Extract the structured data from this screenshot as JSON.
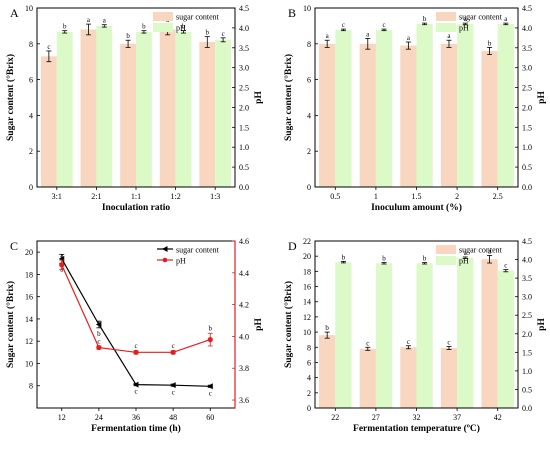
{
  "chart_data": [
    {
      "panel": "A",
      "type": "bar",
      "categories": [
        "3:1",
        "2:1",
        "1:1",
        "1:2",
        "1:3"
      ],
      "xlabel": "Inoculation ratio",
      "ylabel": "Sugar content (°Brix)",
      "y2label": "pH",
      "ylim": [
        0,
        10
      ],
      "yticks": [
        0,
        2,
        4,
        6,
        8,
        10
      ],
      "y2lim": [
        0,
        4.5
      ],
      "y2ticks": [
        "0.0",
        "0.5",
        "1.0",
        "1.5",
        "2.0",
        "2.5",
        "3.0",
        "3.5",
        "4.0",
        "4.5"
      ],
      "legend_position": "top-right",
      "series": [
        {
          "name": "sugar content",
          "axis": "left",
          "color": "#f9d6bf",
          "values": [
            7.3,
            8.8,
            8.0,
            8.8,
            8.1
          ],
          "errors": [
            0.3,
            0.3,
            0.2,
            0.3,
            0.3
          ],
          "letters": [
            "c",
            "a",
            "b",
            "a",
            "b"
          ]
        },
        {
          "name": "pH",
          "axis": "right",
          "color": "#dcf9c8",
          "values": [
            3.9,
            4.05,
            3.9,
            3.9,
            3.7
          ],
          "errors": [
            0.03,
            0.03,
            0.03,
            0.03,
            0.05
          ],
          "letters": [
            "b",
            "a",
            "b",
            "b",
            "c"
          ]
        }
      ]
    },
    {
      "panel": "B",
      "type": "bar",
      "categories": [
        "0.5",
        "1",
        "1.5",
        "2",
        "2.5"
      ],
      "xlabel": "Inoculum amount (%)",
      "ylabel": "Sugar content (°Brix)",
      "y2label": "pH",
      "ylim": [
        0,
        10
      ],
      "yticks": [
        0,
        2,
        4,
        6,
        8,
        10
      ],
      "y2lim": [
        0,
        4.5
      ],
      "y2ticks": [
        "0.0",
        "0.5",
        "1.0",
        "1.5",
        "2.0",
        "2.5",
        "3.0",
        "3.5",
        "4.0",
        "4.5"
      ],
      "legend_position": "top-right",
      "series": [
        {
          "name": "sugar content",
          "axis": "left",
          "color": "#f9d6bf",
          "values": [
            8.0,
            8.0,
            7.9,
            8.0,
            7.6
          ],
          "errors": [
            0.2,
            0.3,
            0.2,
            0.2,
            0.2
          ],
          "letters": [
            "a",
            "a",
            "a",
            "a",
            "b"
          ]
        },
        {
          "name": "pH",
          "axis": "right",
          "color": "#dcf9c8",
          "values": [
            3.95,
            3.95,
            4.1,
            4.1,
            4.1
          ],
          "errors": [
            0.02,
            0.02,
            0.02,
            0.02,
            0.02
          ],
          "letters": [
            "c",
            "c",
            "b",
            "a",
            "a"
          ]
        }
      ]
    },
    {
      "panel": "C",
      "type": "line",
      "x": [
        12,
        24,
        36,
        48,
        60
      ],
      "xlabel": "Fermentation time (h)",
      "ylabel": "Sugar content (°Brix)",
      "y2label": "pH",
      "ylim": [
        6,
        21
      ],
      "yticks": [
        8,
        10,
        12,
        14,
        16,
        18,
        20
      ],
      "y2lim": [
        3.55,
        4.6
      ],
      "y2ticks": [
        "3.6",
        "3.8",
        "4.0",
        "4.2",
        "4.4",
        "4.6"
      ],
      "legend_position": "top-right",
      "series": [
        {
          "name": "sugar content",
          "axis": "left",
          "color": "#000000",
          "marker": "triangle-left",
          "values": [
            19.4,
            13.5,
            8.1,
            8.05,
            7.95
          ],
          "errors": [
            0.4,
            0.3,
            0.1,
            0.1,
            0.1
          ],
          "letters": [
            "a",
            "b",
            "c",
            "c",
            "c"
          ]
        },
        {
          "name": "pH",
          "axis": "right",
          "color": "#e02020",
          "marker": "circle",
          "values": [
            4.45,
            3.93,
            3.9,
            3.9,
            3.98
          ],
          "errors": [
            0.03,
            0.01,
            0.01,
            0.01,
            0.04
          ],
          "letters": [
            "a",
            "c",
            "c",
            "c",
            "b"
          ]
        }
      ]
    },
    {
      "panel": "D",
      "type": "bar",
      "categories": [
        "22",
        "27",
        "32",
        "37",
        "42"
      ],
      "xlabel": "Fermentation temperature (ºC)",
      "ylabel": "Sugar content (°Brix)",
      "y2label": "pH",
      "ylim": [
        0,
        22
      ],
      "yticks": [
        0,
        2,
        4,
        6,
        8,
        10,
        12,
        14,
        16,
        18,
        20,
        22
      ],
      "y2lim": [
        0,
        4.5
      ],
      "y2ticks": [
        "0.0",
        "0.5",
        "1.0",
        "1.5",
        "2.0",
        "2.5",
        "3.0",
        "3.5",
        "4.0",
        "4.5"
      ],
      "legend_position": "top-right",
      "series": [
        {
          "name": "sugar content",
          "axis": "left",
          "color": "#f9d6bf",
          "values": [
            9.6,
            7.8,
            8.0,
            7.9,
            19.6
          ],
          "errors": [
            0.4,
            0.2,
            0.2,
            0.2,
            0.5
          ],
          "letters": [
            "b",
            "c",
            "c",
            "c",
            "a"
          ]
        },
        {
          "name": "pH",
          "axis": "right",
          "color": "#dcf9c8",
          "values": [
            3.93,
            3.9,
            3.9,
            4.05,
            3.7
          ],
          "errors": [
            0.02,
            0.02,
            0.02,
            0.02,
            0.03
          ],
          "letters": [
            "b",
            "b",
            "b",
            "a",
            "c"
          ]
        }
      ]
    }
  ]
}
